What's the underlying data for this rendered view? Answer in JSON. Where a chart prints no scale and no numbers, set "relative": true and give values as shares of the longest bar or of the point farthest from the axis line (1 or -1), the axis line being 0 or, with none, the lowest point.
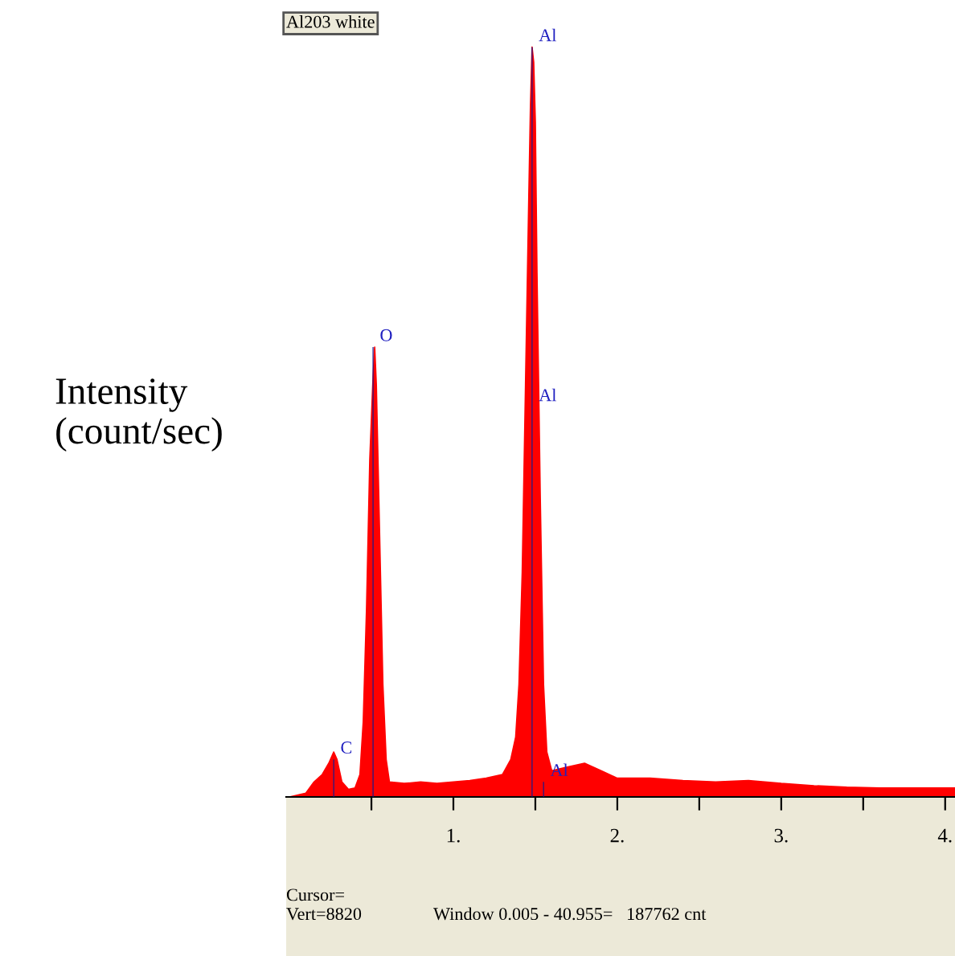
{
  "chart_data": {
    "type": "area",
    "title": "Al203 white",
    "ylabel": "Intensity\n(count/sec)",
    "relative": true,
    "series": [
      {
        "color": "#ff0000",
        "x": [
          0.0,
          0.1,
          0.15,
          0.2,
          0.24,
          0.27,
          0.29,
          0.32,
          0.36,
          0.4,
          0.43,
          0.45,
          0.47,
          0.49,
          0.51,
          0.52,
          0.53,
          0.55,
          0.57,
          0.59,
          0.61,
          0.7,
          0.8,
          0.9,
          1.0,
          1.1,
          1.2,
          1.3,
          1.35,
          1.38,
          1.4,
          1.42,
          1.44,
          1.46,
          1.47,
          1.48,
          1.49,
          1.5,
          1.51,
          1.53,
          1.55,
          1.57,
          1.6,
          1.7,
          1.8,
          1.9,
          2.0,
          2.2,
          2.4,
          2.6,
          2.8,
          3.0,
          3.2,
          3.4,
          3.6,
          3.8,
          4.0,
          4.06
        ],
        "values": [
          0,
          0.005,
          0.02,
          0.03,
          0.045,
          0.06,
          0.05,
          0.02,
          0.01,
          0.012,
          0.03,
          0.1,
          0.25,
          0.45,
          0.56,
          0.6,
          0.55,
          0.35,
          0.15,
          0.05,
          0.02,
          0.018,
          0.02,
          0.018,
          0.02,
          0.022,
          0.025,
          0.03,
          0.05,
          0.08,
          0.15,
          0.3,
          0.55,
          0.8,
          0.92,
          1.0,
          0.98,
          0.9,
          0.7,
          0.4,
          0.15,
          0.06,
          0.035,
          0.04,
          0.045,
          0.035,
          0.025,
          0.025,
          0.022,
          0.02,
          0.022,
          0.018,
          0.015,
          0.013,
          0.012,
          0.012,
          0.012,
          0.012
        ]
      },
      {
        "type": "bar",
        "color": "#1a1a8c",
        "x": [
          0.27,
          0.51,
          1.48,
          1.55
        ],
        "values": [
          0.05,
          0.6,
          1.0,
          0.02
        ]
      }
    ],
    "xlim": [
      -0.02,
      4.06
    ],
    "xticks": [
      {
        "value": 0.5,
        "label": null
      },
      {
        "value": 1,
        "label": "1."
      },
      {
        "value": 1.5,
        "label": null
      },
      {
        "value": 2,
        "label": "2."
      },
      {
        "value": 2.5,
        "label": null
      },
      {
        "value": 3,
        "label": "3."
      },
      {
        "value": 3.5,
        "label": null
      },
      {
        "value": 4,
        "label": "4."
      }
    ],
    "annotations": [
      {
        "text": "C",
        "x": 0.27,
        "y": 0.05
      },
      {
        "text": "O",
        "x": 0.51,
        "y": 0.6
      },
      {
        "text": "Al",
        "x": 1.48,
        "y": 1.0
      },
      {
        "text": "Al",
        "x": 1.48,
        "y": 0.52
      },
      {
        "text": "Al",
        "x": 1.55,
        "y": 0.02
      },
      "Cursor=",
      "Vert=8820",
      "Window 0.005 - 40.955=   187762 cnt"
    ],
    "grid": false,
    "legend": false
  }
}
